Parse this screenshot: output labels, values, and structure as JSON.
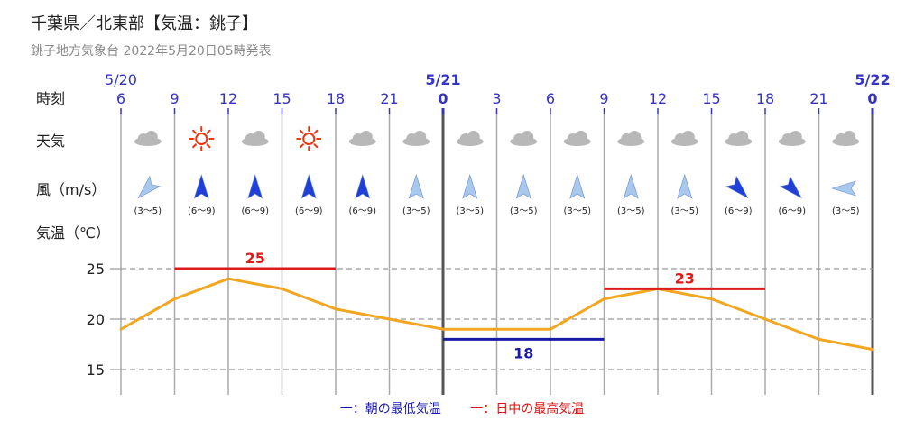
{
  "header": {
    "title": "千葉県／北東部【気温：銚子】",
    "subtitle": "銚子地方気象台 2022年5月20日05時発表"
  },
  "row_labels": {
    "time": "時刻",
    "weather": "天気",
    "wind": "風（m/s）",
    "temp": "気温（℃）"
  },
  "legend": {
    "low": "一：朝の最低気温",
    "high": "一：日中の最高気温"
  },
  "colors": {
    "temp_line": "#f2a622",
    "high": "#dd1b1b",
    "low": "#1a1aa8",
    "axis_text": "#3434c0",
    "grid": "#999999",
    "sunny": "#ee3311",
    "cloudy": "#b8b8b8",
    "wind_strong": "#1f3fd8",
    "wind_weak": "#a9c8ee"
  },
  "chart_data": {
    "type": "line",
    "title": "千葉県／北東部【気温：銚子】",
    "date_labels": [
      {
        "index": 0,
        "text": "5/20"
      },
      {
        "index": 6,
        "text": "5/21"
      },
      {
        "index": 14,
        "text": "5/22"
      }
    ],
    "hours": [
      "6",
      "9",
      "12",
      "15",
      "18",
      "21",
      "0",
      "3",
      "6",
      "9",
      "12",
      "15",
      "18",
      "21",
      "0"
    ],
    "weather": [
      "cloudy",
      "sunny",
      "cloudy",
      "sunny",
      "cloudy",
      "cloudy",
      "cloudy",
      "cloudy",
      "cloudy",
      "cloudy",
      "cloudy",
      "cloudy",
      "cloudy",
      "cloudy"
    ],
    "wind": [
      {
        "dir": "NE",
        "speed": "(3～5)",
        "strong": false
      },
      {
        "dir": "S",
        "speed": "(6～9)",
        "strong": true
      },
      {
        "dir": "S",
        "speed": "(6～9)",
        "strong": true
      },
      {
        "dir": "S",
        "speed": "(6～9)",
        "strong": true
      },
      {
        "dir": "S",
        "speed": "(6～9)",
        "strong": true
      },
      {
        "dir": "S",
        "speed": "(3～5)",
        "strong": false
      },
      {
        "dir": "S",
        "speed": "(3～5)",
        "strong": false
      },
      {
        "dir": "S",
        "speed": "(3～5)",
        "strong": false
      },
      {
        "dir": "S",
        "speed": "(3～5)",
        "strong": false
      },
      {
        "dir": "S",
        "speed": "(3～5)",
        "strong": false
      },
      {
        "dir": "S",
        "speed": "(3～5)",
        "strong": false
      },
      {
        "dir": "NW",
        "speed": "(6～9)",
        "strong": true
      },
      {
        "dir": "NW",
        "speed": "(6～9)",
        "strong": true
      },
      {
        "dir": "E",
        "speed": "(3～5)",
        "strong": false
      }
    ],
    "temperature": [
      19,
      22,
      24,
      23,
      21,
      20,
      19,
      19,
      19,
      22,
      23,
      22,
      20,
      18,
      17
    ],
    "yticks": [
      15,
      20,
      25
    ],
    "ylim": [
      13,
      28
    ],
    "high_min": [
      {
        "label": "25",
        "value": 25,
        "start": 1,
        "end": 4,
        "kind": "high"
      },
      {
        "label": "18",
        "value": 18,
        "start": 6,
        "end": 9,
        "kind": "low"
      },
      {
        "label": "23",
        "value": 23,
        "start": 9,
        "end": 12,
        "kind": "high"
      }
    ],
    "grid": true
  }
}
